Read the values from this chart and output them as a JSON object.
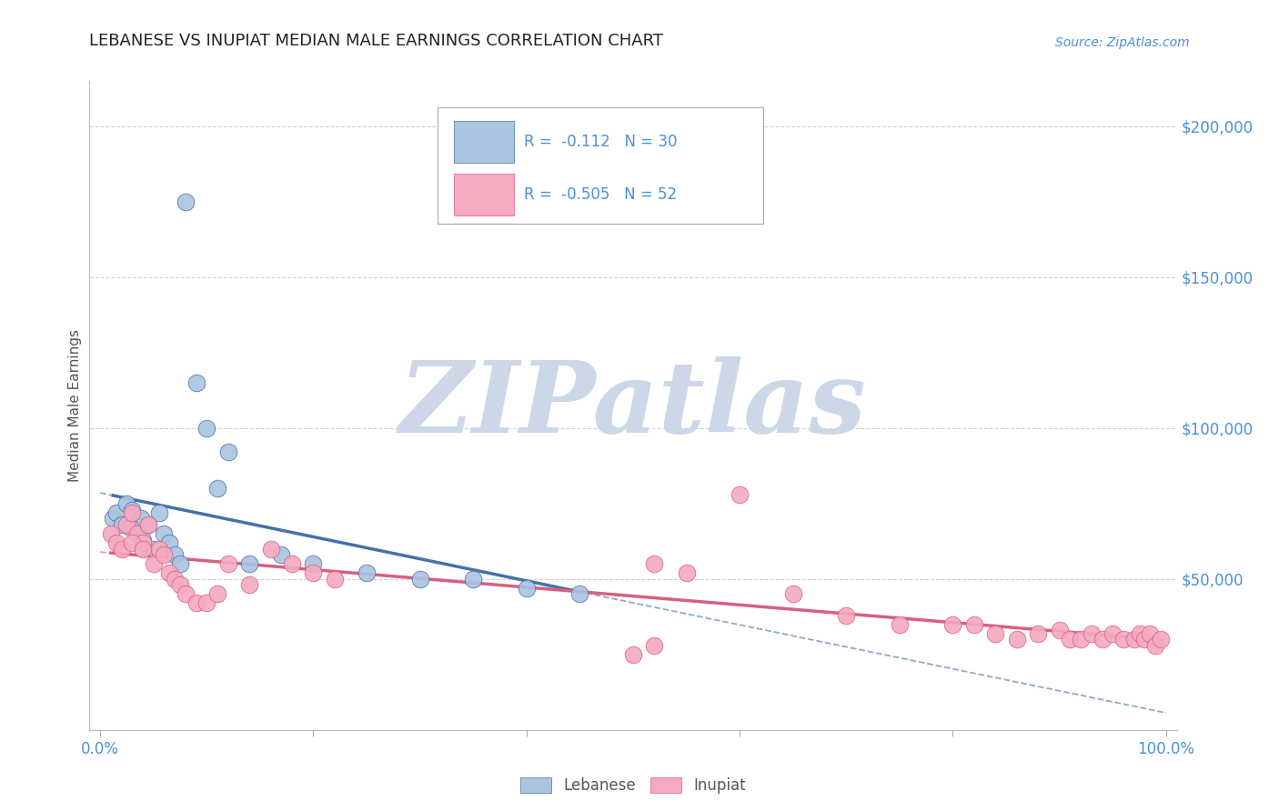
{
  "title": "LEBANESE VS INUPIAT MEDIAN MALE EARNINGS CORRELATION CHART",
  "source_text": "Source: ZipAtlas.com",
  "ylabel": "Median Male Earnings",
  "legend_r_lebanese": "-0.112",
  "legend_n_lebanese": "30",
  "legend_r_inupiat": "-0.505",
  "legend_n_inupiat": "52",
  "lebanese_color": "#aac4e2",
  "inupiat_color": "#f5aabf",
  "lebanese_line_color": "#4472a8",
  "inupiat_line_color": "#d95f7f",
  "background_color": "#ffffff",
  "grid_color": "#cccccc",
  "watermark_color": "#ccd8e8",
  "watermark_text": "ZIPatlas",
  "ytick_color": "#4a90d9",
  "xtick_color": "#4a90d9",
  "lebanese_x": [
    1.2,
    1.5,
    2.0,
    2.5,
    3.0,
    3.2,
    3.5,
    4.0,
    4.5,
    5.0,
    5.5,
    6.0,
    6.5,
    7.0,
    7.5,
    8.0,
    9.0,
    10.0,
    11.0,
    12.0,
    14.0,
    17.0,
    20.0,
    25.0,
    30.0,
    35.0,
    40.0,
    45.0,
    3.8,
    2.8
  ],
  "lebanese_y": [
    70000,
    72000,
    68000,
    75000,
    73000,
    68000,
    65000,
    63000,
    68000,
    60000,
    72000,
    65000,
    62000,
    58000,
    55000,
    175000,
    115000,
    100000,
    80000,
    92000,
    55000,
    58000,
    55000,
    52000,
    50000,
    50000,
    47000,
    45000,
    70000,
    67000
  ],
  "inupiat_x": [
    1.0,
    1.5,
    2.0,
    2.5,
    3.0,
    3.5,
    4.0,
    4.5,
    5.0,
    5.5,
    6.0,
    6.5,
    7.0,
    7.5,
    8.0,
    9.0,
    10.0,
    11.0,
    12.0,
    14.0,
    16.0,
    18.0,
    20.0,
    22.0,
    52.0,
    55.0,
    60.0,
    65.0,
    70.0,
    75.0,
    80.0,
    82.0,
    84.0,
    86.0,
    88.0,
    90.0,
    91.0,
    92.0,
    93.0,
    94.0,
    95.0,
    96.0,
    97.0,
    97.5,
    98.0,
    98.5,
    99.0,
    99.5,
    3.0,
    4.0,
    50.0,
    52.0
  ],
  "inupiat_y": [
    65000,
    62000,
    60000,
    68000,
    72000,
    65000,
    62000,
    68000,
    55000,
    60000,
    58000,
    52000,
    50000,
    48000,
    45000,
    42000,
    42000,
    45000,
    55000,
    48000,
    60000,
    55000,
    52000,
    50000,
    55000,
    52000,
    78000,
    45000,
    38000,
    35000,
    35000,
    35000,
    32000,
    30000,
    32000,
    33000,
    30000,
    30000,
    32000,
    30000,
    32000,
    30000,
    30000,
    32000,
    30000,
    32000,
    28000,
    30000,
    62000,
    60000,
    25000,
    28000
  ]
}
